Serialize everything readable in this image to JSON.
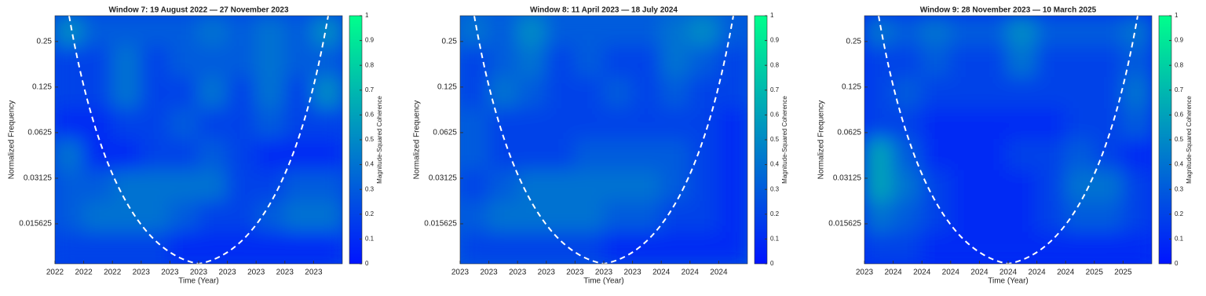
{
  "chart_data": [
    {
      "type": "heatmap",
      "title": "Window 7: 19 August 2022 — 27 November 2023",
      "xlabel": "Time (Year)",
      "ylabel": "Normalized Frequency",
      "colorbar_label": "Magnitude-Squared Coherence",
      "categories": [
        "2022",
        "2022",
        "2022",
        "2023",
        "2023",
        "2023",
        "2023",
        "2023",
        "2023",
        "2023"
      ],
      "yscale": "log2",
      "ylim": [
        0.0085,
        0.37
      ],
      "yticks": [
        0.015625,
        0.03125,
        0.0625,
        0.125,
        0.25
      ],
      "clim": [
        0,
        1
      ],
      "cticks": [
        0,
        0.1,
        0.2,
        0.3,
        0.4,
        0.5,
        0.6,
        0.7,
        0.8,
        0.9,
        1
      ],
      "colormap": [
        "#0014ff",
        "#00ff8c"
      ],
      "z": [
        [
          0.5,
          0.3,
          0.3,
          0.3,
          0.3,
          0.4,
          0.3,
          0.4,
          0.3,
          0.5
        ],
        [
          0.2,
          0.2,
          0.4,
          0.2,
          0.3,
          0.3,
          0.3,
          0.4,
          0.3,
          0.3
        ],
        [
          0.2,
          0.2,
          0.4,
          0.2,
          0.2,
          0.4,
          0.2,
          0.4,
          0.2,
          0.5
        ],
        [
          0.1,
          0.1,
          0.2,
          0.2,
          0.3,
          0.2,
          0.2,
          0.3,
          0.2,
          0.2
        ],
        [
          0.4,
          0.1,
          0.1,
          0.2,
          0.2,
          0.3,
          0.2,
          0.1,
          0.1,
          0.1
        ],
        [
          0.3,
          0.3,
          0.4,
          0.4,
          0.4,
          0.4,
          0.2,
          0.2,
          0.3,
          0.3
        ],
        [
          0.3,
          0.4,
          0.4,
          0.4,
          0.3,
          0.2,
          0.2,
          0.3,
          0.4,
          0.4
        ],
        [
          0.2,
          0.2,
          0.2,
          0.2,
          0.1,
          0.1,
          0.1,
          0.1,
          0.1,
          0.1
        ]
      ]
    },
    {
      "type": "heatmap",
      "title": "Window 8: 11 April 2023 — 18 July 2024",
      "xlabel": "Time (Year)",
      "ylabel": "Normalized Frequency",
      "colorbar_label": "Magnitude-Squared Coherence",
      "categories": [
        "2023",
        "2023",
        "2023",
        "2023",
        "2023",
        "2023",
        "2023",
        "2024",
        "2024",
        "2024"
      ],
      "yscale": "log2",
      "ylim": [
        0.0085,
        0.37
      ],
      "yticks": [
        0.015625,
        0.03125,
        0.0625,
        0.125,
        0.25
      ],
      "clim": [
        0,
        1
      ],
      "cticks": [
        0,
        0.1,
        0.2,
        0.3,
        0.4,
        0.5,
        0.6,
        0.7,
        0.8,
        0.9,
        1
      ],
      "colormap": [
        "#0014ff",
        "#00ff8c"
      ],
      "z": [
        [
          0.4,
          0.3,
          0.5,
          0.3,
          0.3,
          0.3,
          0.3,
          0.4,
          0.5,
          0.3
        ],
        [
          0.2,
          0.3,
          0.4,
          0.2,
          0.3,
          0.2,
          0.2,
          0.4,
          0.3,
          0.2
        ],
        [
          0.2,
          0.4,
          0.3,
          0.2,
          0.2,
          0.3,
          0.2,
          0.3,
          0.2,
          0.2
        ],
        [
          0.3,
          0.2,
          0.2,
          0.2,
          0.2,
          0.2,
          0.2,
          0.2,
          0.2,
          0.1
        ],
        [
          0.3,
          0.2,
          0.2,
          0.2,
          0.3,
          0.3,
          0.3,
          0.3,
          0.2,
          0.1
        ],
        [
          0.2,
          0.3,
          0.4,
          0.4,
          0.4,
          0.4,
          0.4,
          0.3,
          0.2,
          0.1
        ],
        [
          0.3,
          0.4,
          0.4,
          0.4,
          0.4,
          0.3,
          0.3,
          0.2,
          0.2,
          0.1
        ],
        [
          0.2,
          0.2,
          0.2,
          0.2,
          0.2,
          0.1,
          0.1,
          0.1,
          0.1,
          0.1
        ]
      ]
    },
    {
      "type": "heatmap",
      "title": "Window 9: 28 November 2023 — 10 March 2025",
      "xlabel": "Time (Year)",
      "ylabel": "Normalized Frequency",
      "colorbar_label": "Magnitude-Squared Coherence",
      "categories": [
        "2023",
        "2024",
        "2024",
        "2024",
        "2024",
        "2024",
        "2024",
        "2024",
        "2025",
        "2025"
      ],
      "yscale": "log2",
      "ylim": [
        0.0085,
        0.37
      ],
      "yticks": [
        0.015625,
        0.03125,
        0.0625,
        0.125,
        0.25
      ],
      "clim": [
        0,
        1
      ],
      "cticks": [
        0,
        0.1,
        0.2,
        0.3,
        0.4,
        0.5,
        0.6,
        0.7,
        0.8,
        0.9,
        1
      ],
      "colormap": [
        "#0014ff",
        "#00ff8c"
      ],
      "z": [
        [
          0.4,
          0.3,
          0.4,
          0.3,
          0.3,
          0.5,
          0.3,
          0.3,
          0.3,
          0.4
        ],
        [
          0.2,
          0.2,
          0.3,
          0.2,
          0.2,
          0.4,
          0.2,
          0.2,
          0.2,
          0.3
        ],
        [
          0.2,
          0.3,
          0.2,
          0.2,
          0.2,
          0.2,
          0.2,
          0.2,
          0.2,
          0.4
        ],
        [
          0.2,
          0.2,
          0.1,
          0.1,
          0.1,
          0.1,
          0.1,
          0.2,
          0.2,
          0.3
        ],
        [
          0.6,
          0.3,
          0.1,
          0.1,
          0.1,
          0.2,
          0.2,
          0.3,
          0.2,
          0.1
        ],
        [
          0.6,
          0.4,
          0.2,
          0.1,
          0.1,
          0.1,
          0.2,
          0.4,
          0.4,
          0.2
        ],
        [
          0.4,
          0.3,
          0.2,
          0.1,
          0.1,
          0.1,
          0.2,
          0.3,
          0.3,
          0.2
        ],
        [
          0.2,
          0.2,
          0.1,
          0.1,
          0.1,
          0.1,
          0.1,
          0.1,
          0.1,
          0.1
        ]
      ]
    }
  ]
}
